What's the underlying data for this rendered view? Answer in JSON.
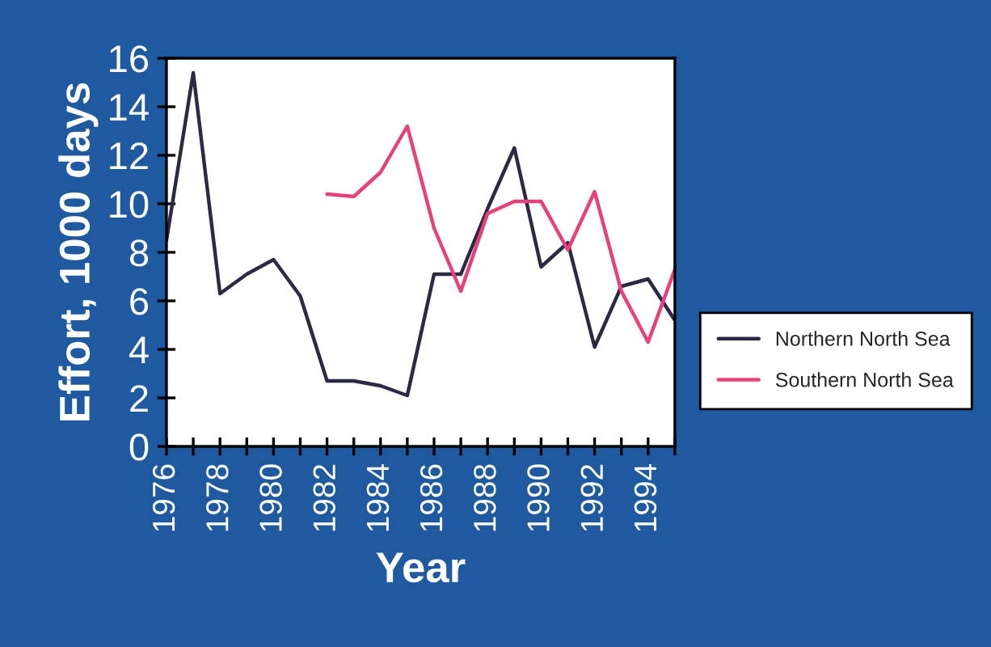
{
  "chart_data": {
    "type": "line",
    "xlabel": "Year",
    "ylabel": "Effort, 1000 days",
    "x": [
      1976,
      1977,
      1978,
      1979,
      1980,
      1981,
      1982,
      1983,
      1984,
      1985,
      1986,
      1987,
      1988,
      1989,
      1990,
      1991,
      1992,
      1993,
      1994,
      1995
    ],
    "series": [
      {
        "name": "Northern North Sea",
        "color": "#2a2a45",
        "values": [
          8.5,
          15.4,
          6.3,
          7.1,
          7.7,
          6.2,
          2.7,
          2.7,
          2.5,
          2.1,
          7.1,
          7.1,
          9.8,
          12.3,
          7.4,
          8.4,
          4.1,
          6.6,
          6.9,
          5.2
        ]
      },
      {
        "name": "Southern North Sea",
        "color": "#e8407a",
        "values": [
          null,
          null,
          null,
          null,
          null,
          null,
          10.4,
          10.3,
          11.3,
          13.2,
          9.0,
          6.4,
          9.6,
          10.1,
          10.1,
          8.1,
          10.5,
          6.4,
          4.3,
          7.3
        ]
      }
    ],
    "xlim": [
      1976,
      1995
    ],
    "xticks": [
      1976,
      {
        "value": 1977,
        "label": null
      },
      1978,
      {
        "value": 1979,
        "label": null
      },
      1980,
      {
        "value": 1981,
        "label": null
      },
      1982,
      {
        "value": 1983,
        "label": null
      },
      1984,
      {
        "value": 1985,
        "label": null
      },
      1986,
      {
        "value": 1987,
        "label": null
      },
      1988,
      {
        "value": 1989,
        "label": null
      },
      1990,
      {
        "value": 1991,
        "label": null
      },
      1992,
      {
        "value": 1993,
        "label": null
      },
      1994,
      {
        "value": 1995,
        "label": null
      }
    ],
    "ylim": [
      0,
      16
    ],
    "yticks": [
      0,
      2,
      4,
      6,
      8,
      10,
      12,
      14,
      16
    ],
    "grid": false,
    "legend": "right",
    "marker": "none",
    "line_style": "solid"
  }
}
